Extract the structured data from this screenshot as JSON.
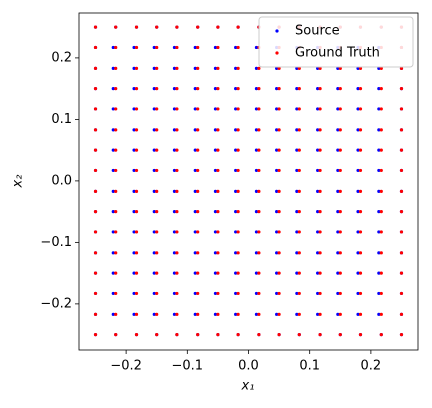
{
  "chart_data": {
    "type": "scatter",
    "xlabel": "x₁",
    "ylabel": "x₂",
    "xlim": [
      -0.277,
      0.277
    ],
    "ylim": [
      -0.275,
      0.273
    ],
    "xticks": [
      {
        "value": -0.2,
        "label": "−0.2"
      },
      {
        "value": -0.1,
        "label": "−0.1"
      },
      {
        "value": 0.0,
        "label": "0.0"
      },
      0.1,
      0.2
    ],
    "yticks": [
      {
        "value": -0.2,
        "label": "−0.2"
      },
      {
        "value": -0.1,
        "label": "−0.1"
      },
      {
        "value": 0.0,
        "label": "0.0"
      },
      0.1,
      0.2
    ],
    "legend": "upper right",
    "series": [
      {
        "name": "Source",
        "color": "#0000ff",
        "x": [
          -0.25,
          -0.217,
          -0.183,
          -0.15,
          -0.117,
          -0.083,
          -0.05,
          -0.017,
          0.017,
          0.05,
          0.083,
          0.117,
          0.15,
          0.183,
          0.217,
          0.25,
          -0.25,
          -0.221,
          -0.187,
          -0.154,
          -0.121,
          -0.087,
          -0.054,
          -0.021,
          0.013,
          0.046,
          0.079,
          0.113,
          0.146,
          0.179,
          0.213,
          0.25,
          -0.25,
          -0.221,
          -0.187,
          -0.154,
          -0.121,
          -0.087,
          -0.054,
          -0.021,
          0.013,
          0.046,
          0.079,
          0.113,
          0.146,
          0.179,
          0.213,
          0.25,
          -0.25,
          -0.221,
          -0.187,
          -0.154,
          -0.121,
          -0.087,
          -0.054,
          -0.021,
          0.013,
          0.046,
          0.079,
          0.113,
          0.146,
          0.179,
          0.213,
          0.25,
          -0.25,
          -0.221,
          -0.187,
          -0.154,
          -0.121,
          -0.087,
          -0.054,
          -0.021,
          0.013,
          0.046,
          0.079,
          0.113,
          0.146,
          0.179,
          0.213,
          0.25,
          -0.25,
          -0.221,
          -0.187,
          -0.154,
          -0.121,
          -0.087,
          -0.054,
          -0.021,
          0.013,
          0.046,
          0.079,
          0.113,
          0.146,
          0.179,
          0.213,
          0.25,
          -0.25,
          -0.221,
          -0.187,
          -0.154,
          -0.121,
          -0.087,
          -0.054,
          -0.021,
          0.013,
          0.046,
          0.079,
          0.113,
          0.146,
          0.179,
          0.213,
          0.25,
          -0.25,
          -0.221,
          -0.187,
          -0.154,
          -0.121,
          -0.087,
          -0.054,
          -0.021,
          0.013,
          0.046,
          0.079,
          0.113,
          0.146,
          0.179,
          0.213,
          0.25,
          -0.25,
          -0.221,
          -0.187,
          -0.154,
          -0.121,
          -0.087,
          -0.054,
          -0.021,
          0.013,
          0.046,
          0.079,
          0.113,
          0.146,
          0.179,
          0.213,
          0.25,
          -0.25,
          -0.221,
          -0.187,
          -0.154,
          -0.121,
          -0.087,
          -0.054,
          -0.021,
          0.013,
          0.046,
          0.079,
          0.113,
          0.146,
          0.179,
          0.213,
          0.25,
          -0.25,
          -0.221,
          -0.187,
          -0.154,
          -0.121,
          -0.087,
          -0.054,
          -0.021,
          0.013,
          0.046,
          0.079,
          0.113,
          0.146,
          0.179,
          0.213,
          0.25,
          -0.25,
          -0.221,
          -0.187,
          -0.154,
          -0.121,
          -0.087,
          -0.054,
          -0.021,
          0.013,
          0.046,
          0.079,
          0.113,
          0.146,
          0.179,
          0.213,
          0.25,
          -0.25,
          -0.221,
          -0.187,
          -0.154,
          -0.121,
          -0.087,
          -0.054,
          -0.021,
          0.013,
          0.046,
          0.079,
          0.113,
          0.146,
          0.179,
          0.213,
          0.25,
          -0.25,
          -0.221,
          -0.187,
          -0.154,
          -0.121,
          -0.087,
          -0.054,
          -0.021,
          0.013,
          0.046,
          0.079,
          0.113,
          0.146,
          0.179,
          0.213,
          0.25,
          -0.25,
          -0.221,
          -0.187,
          -0.154,
          -0.121,
          -0.087,
          -0.054,
          -0.021,
          0.013,
          0.046,
          0.079,
          0.113,
          0.146,
          0.179,
          0.213,
          0.25,
          -0.25,
          -0.217,
          -0.183,
          -0.15,
          -0.117,
          -0.083,
          -0.05,
          -0.017,
          0.017,
          0.05,
          0.083,
          0.117,
          0.15,
          0.183,
          0.217,
          0.25
        ],
        "y": [
          0.25,
          0.25,
          0.25,
          0.25,
          0.25,
          0.25,
          0.25,
          0.25,
          0.25,
          0.25,
          0.25,
          0.25,
          0.25,
          0.25,
          0.25,
          0.25,
          0.217,
          0.217,
          0.217,
          0.217,
          0.217,
          0.217,
          0.217,
          0.217,
          0.217,
          0.217,
          0.217,
          0.217,
          0.217,
          0.217,
          0.217,
          0.217,
          0.183,
          0.183,
          0.183,
          0.183,
          0.183,
          0.183,
          0.183,
          0.183,
          0.183,
          0.183,
          0.183,
          0.183,
          0.183,
          0.183,
          0.183,
          0.183,
          0.15,
          0.15,
          0.15,
          0.15,
          0.15,
          0.15,
          0.15,
          0.15,
          0.15,
          0.15,
          0.15,
          0.15,
          0.15,
          0.15,
          0.15,
          0.15,
          0.117,
          0.117,
          0.117,
          0.117,
          0.117,
          0.117,
          0.117,
          0.117,
          0.117,
          0.117,
          0.117,
          0.117,
          0.117,
          0.117,
          0.117,
          0.117,
          0.083,
          0.083,
          0.083,
          0.083,
          0.083,
          0.083,
          0.083,
          0.083,
          0.083,
          0.083,
          0.083,
          0.083,
          0.083,
          0.083,
          0.083,
          0.083,
          0.05,
          0.05,
          0.05,
          0.05,
          0.05,
          0.05,
          0.05,
          0.05,
          0.05,
          0.05,
          0.05,
          0.05,
          0.05,
          0.05,
          0.05,
          0.05,
          0.017,
          0.017,
          0.017,
          0.017,
          0.017,
          0.017,
          0.017,
          0.017,
          0.017,
          0.017,
          0.017,
          0.017,
          0.017,
          0.017,
          0.017,
          0.017,
          -0.017,
          -0.017,
          -0.017,
          -0.017,
          -0.017,
          -0.017,
          -0.017,
          -0.017,
          -0.017,
          -0.017,
          -0.017,
          -0.017,
          -0.017,
          -0.017,
          -0.017,
          -0.017,
          -0.05,
          -0.05,
          -0.05,
          -0.05,
          -0.05,
          -0.05,
          -0.05,
          -0.05,
          -0.05,
          -0.05,
          -0.05,
          -0.05,
          -0.05,
          -0.05,
          -0.05,
          -0.05,
          -0.083,
          -0.083,
          -0.083,
          -0.083,
          -0.083,
          -0.083,
          -0.083,
          -0.083,
          -0.083,
          -0.083,
          -0.083,
          -0.083,
          -0.083,
          -0.083,
          -0.083,
          -0.083,
          -0.117,
          -0.117,
          -0.117,
          -0.117,
          -0.117,
          -0.117,
          -0.117,
          -0.117,
          -0.117,
          -0.117,
          -0.117,
          -0.117,
          -0.117,
          -0.117,
          -0.117,
          -0.117,
          -0.15,
          -0.15,
          -0.15,
          -0.15,
          -0.15,
          -0.15,
          -0.15,
          -0.15,
          -0.15,
          -0.15,
          -0.15,
          -0.15,
          -0.15,
          -0.15,
          -0.15,
          -0.15,
          -0.183,
          -0.183,
          -0.183,
          -0.183,
          -0.183,
          -0.183,
          -0.183,
          -0.183,
          -0.183,
          -0.183,
          -0.183,
          -0.183,
          -0.183,
          -0.183,
          -0.183,
          -0.183,
          -0.217,
          -0.217,
          -0.217,
          -0.217,
          -0.217,
          -0.217,
          -0.217,
          -0.217,
          -0.217,
          -0.217,
          -0.217,
          -0.217,
          -0.217,
          -0.217,
          -0.217,
          -0.217,
          -0.25,
          -0.25,
          -0.25,
          -0.25,
          -0.25,
          -0.25,
          -0.25,
          -0.25,
          -0.25,
          -0.25,
          -0.25,
          -0.25,
          -0.25,
          -0.25,
          -0.25,
          -0.25
        ]
      },
      {
        "name": "Ground Truth",
        "color": "#ff0000",
        "x": [
          -0.25,
          -0.217,
          -0.183,
          -0.15,
          -0.117,
          -0.083,
          -0.05,
          -0.017,
          0.017,
          0.05,
          0.083,
          0.117,
          0.15,
          0.183,
          0.217,
          0.25,
          -0.25,
          -0.217,
          -0.183,
          -0.15,
          -0.117,
          -0.083,
          -0.05,
          -0.017,
          0.017,
          0.05,
          0.083,
          0.117,
          0.15,
          0.183,
          0.217,
          0.25,
          -0.25,
          -0.217,
          -0.183,
          -0.15,
          -0.117,
          -0.083,
          -0.05,
          -0.017,
          0.017,
          0.05,
          0.083,
          0.117,
          0.15,
          0.183,
          0.217,
          0.25,
          -0.25,
          -0.217,
          -0.183,
          -0.15,
          -0.117,
          -0.083,
          -0.05,
          -0.017,
          0.017,
          0.05,
          0.083,
          0.117,
          0.15,
          0.183,
          0.217,
          0.25,
          -0.25,
          -0.217,
          -0.183,
          -0.15,
          -0.117,
          -0.083,
          -0.05,
          -0.017,
          0.017,
          0.05,
          0.083,
          0.117,
          0.15,
          0.183,
          0.217,
          0.25,
          -0.25,
          -0.217,
          -0.183,
          -0.15,
          -0.117,
          -0.083,
          -0.05,
          -0.017,
          0.017,
          0.05,
          0.083,
          0.117,
          0.15,
          0.183,
          0.217,
          0.25,
          -0.25,
          -0.217,
          -0.183,
          -0.15,
          -0.117,
          -0.083,
          -0.05,
          -0.017,
          0.017,
          0.05,
          0.083,
          0.117,
          0.15,
          0.183,
          0.217,
          0.25,
          -0.25,
          -0.217,
          -0.183,
          -0.15,
          -0.117,
          -0.083,
          -0.05,
          -0.017,
          0.017,
          0.05,
          0.083,
          0.117,
          0.15,
          0.183,
          0.217,
          0.25,
          -0.25,
          -0.217,
          -0.183,
          -0.15,
          -0.117,
          -0.083,
          -0.05,
          -0.017,
          0.017,
          0.05,
          0.083,
          0.117,
          0.15,
          0.183,
          0.217,
          0.25,
          -0.25,
          -0.217,
          -0.183,
          -0.15,
          -0.117,
          -0.083,
          -0.05,
          -0.017,
          0.017,
          0.05,
          0.083,
          0.117,
          0.15,
          0.183,
          0.217,
          0.25,
          -0.25,
          -0.217,
          -0.183,
          -0.15,
          -0.117,
          -0.083,
          -0.05,
          -0.017,
          0.017,
          0.05,
          0.083,
          0.117,
          0.15,
          0.183,
          0.217,
          0.25,
          -0.25,
          -0.217,
          -0.183,
          -0.15,
          -0.117,
          -0.083,
          -0.05,
          -0.017,
          0.017,
          0.05,
          0.083,
          0.117,
          0.15,
          0.183,
          0.217,
          0.25,
          -0.25,
          -0.217,
          -0.183,
          -0.15,
          -0.117,
          -0.083,
          -0.05,
          -0.017,
          0.017,
          0.05,
          0.083,
          0.117,
          0.15,
          0.183,
          0.217,
          0.25,
          -0.25,
          -0.217,
          -0.183,
          -0.15,
          -0.117,
          -0.083,
          -0.05,
          -0.017,
          0.017,
          0.05,
          0.083,
          0.117,
          0.15,
          0.183,
          0.217,
          0.25,
          -0.25,
          -0.217,
          -0.183,
          -0.15,
          -0.117,
          -0.083,
          -0.05,
          -0.017,
          0.017,
          0.05,
          0.083,
          0.117,
          0.15,
          0.183,
          0.217,
          0.25,
          -0.25,
          -0.217,
          -0.183,
          -0.15,
          -0.117,
          -0.083,
          -0.05,
          -0.017,
          0.017,
          0.05,
          0.083,
          0.117,
          0.15,
          0.183,
          0.217,
          0.25
        ],
        "y": [
          0.25,
          0.25,
          0.25,
          0.25,
          0.25,
          0.25,
          0.25,
          0.25,
          0.25,
          0.25,
          0.25,
          0.25,
          0.25,
          0.25,
          0.25,
          0.25,
          0.217,
          0.217,
          0.217,
          0.217,
          0.217,
          0.217,
          0.217,
          0.217,
          0.217,
          0.217,
          0.217,
          0.217,
          0.217,
          0.217,
          0.217,
          0.217,
          0.183,
          0.183,
          0.183,
          0.183,
          0.183,
          0.183,
          0.183,
          0.183,
          0.183,
          0.183,
          0.183,
          0.183,
          0.183,
          0.183,
          0.183,
          0.183,
          0.15,
          0.15,
          0.15,
          0.15,
          0.15,
          0.15,
          0.15,
          0.15,
          0.15,
          0.15,
          0.15,
          0.15,
          0.15,
          0.15,
          0.15,
          0.15,
          0.117,
          0.117,
          0.117,
          0.117,
          0.117,
          0.117,
          0.117,
          0.117,
          0.117,
          0.117,
          0.117,
          0.117,
          0.117,
          0.117,
          0.117,
          0.117,
          0.083,
          0.083,
          0.083,
          0.083,
          0.083,
          0.083,
          0.083,
          0.083,
          0.083,
          0.083,
          0.083,
          0.083,
          0.083,
          0.083,
          0.083,
          0.083,
          0.05,
          0.05,
          0.05,
          0.05,
          0.05,
          0.05,
          0.05,
          0.05,
          0.05,
          0.05,
          0.05,
          0.05,
          0.05,
          0.05,
          0.05,
          0.05,
          0.017,
          0.017,
          0.017,
          0.017,
          0.017,
          0.017,
          0.017,
          0.017,
          0.017,
          0.017,
          0.017,
          0.017,
          0.017,
          0.017,
          0.017,
          0.017,
          -0.017,
          -0.017,
          -0.017,
          -0.017,
          -0.017,
          -0.017,
          -0.017,
          -0.017,
          -0.017,
          -0.017,
          -0.017,
          -0.017,
          -0.017,
          -0.017,
          -0.017,
          -0.017,
          -0.05,
          -0.05,
          -0.05,
          -0.05,
          -0.05,
          -0.05,
          -0.05,
          -0.05,
          -0.05,
          -0.05,
          -0.05,
          -0.05,
          -0.05,
          -0.05,
          -0.05,
          -0.05,
          -0.083,
          -0.083,
          -0.083,
          -0.083,
          -0.083,
          -0.083,
          -0.083,
          -0.083,
          -0.083,
          -0.083,
          -0.083,
          -0.083,
          -0.083,
          -0.083,
          -0.083,
          -0.083,
          -0.117,
          -0.117,
          -0.117,
          -0.117,
          -0.117,
          -0.117,
          -0.117,
          -0.117,
          -0.117,
          -0.117,
          -0.117,
          -0.117,
          -0.117,
          -0.117,
          -0.117,
          -0.117,
          -0.15,
          -0.15,
          -0.15,
          -0.15,
          -0.15,
          -0.15,
          -0.15,
          -0.15,
          -0.15,
          -0.15,
          -0.15,
          -0.15,
          -0.15,
          -0.15,
          -0.15,
          -0.15,
          -0.183,
          -0.183,
          -0.183,
          -0.183,
          -0.183,
          -0.183,
          -0.183,
          -0.183,
          -0.183,
          -0.183,
          -0.183,
          -0.183,
          -0.183,
          -0.183,
          -0.183,
          -0.183,
          -0.217,
          -0.217,
          -0.217,
          -0.217,
          -0.217,
          -0.217,
          -0.217,
          -0.217,
          -0.217,
          -0.217,
          -0.217,
          -0.217,
          -0.217,
          -0.217,
          -0.217,
          -0.217,
          -0.25,
          -0.25,
          -0.25,
          -0.25,
          -0.25,
          -0.25,
          -0.25,
          -0.25,
          -0.25,
          -0.25,
          -0.25,
          -0.25,
          -0.25,
          -0.25,
          -0.25,
          -0.25
        ]
      }
    ]
  }
}
